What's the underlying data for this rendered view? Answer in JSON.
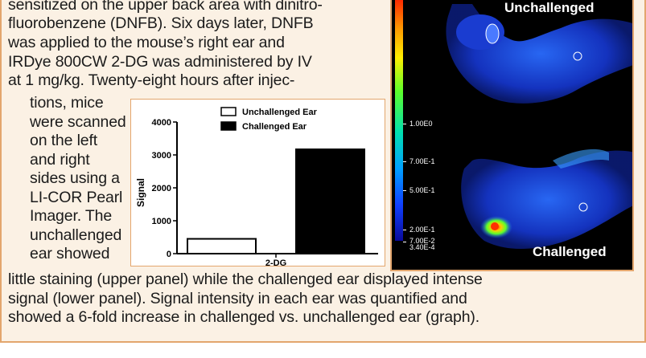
{
  "text": {
    "lines_top": [
      "sensitized on the upper back area with dinitro-",
      "fluorobenzene (DNFB). Six days later, DNFB",
      "was applied to the mouse’s right ear and",
      "IRDye 800CW 2-DG was administered by IV",
      "at 1 mg/kg. Twenty-eight hours after injec-"
    ],
    "lines_left": [
      "tions, mice",
      "were scanned",
      "on the left",
      "and right",
      "sides using a",
      "LI-COR Pearl",
      "Imager. The",
      "unchallenged",
      "ear showed"
    ],
    "lines_bottom": [
      "little staining (upper panel) while the challenged ear displayed intense",
      "signal (lower panel). Signal intensity in each ear was quantified and",
      "showed a 6-fold increase in challenged vs. unchallenged ear (graph)."
    ]
  },
  "image_panel": {
    "top_label": "Unchallenged",
    "bottom_label": "Challenged",
    "scale_labels": [
      "1.00E0",
      "7.00E-1",
      "5.00E-1",
      "2.00E-1",
      "7.00E-2",
      "3.40E-4"
    ]
  },
  "chart_data": {
    "type": "bar",
    "categories": [
      "2-DG"
    ],
    "series": [
      {
        "name": "Unchallenged Ear",
        "values": [
          450
        ],
        "fill": "#ffffff"
      },
      {
        "name": "Challenged Ear",
        "values": [
          3170
        ],
        "fill": "#000000"
      }
    ],
    "ylabel": "Signal",
    "xlabel": "",
    "ylim": [
      0,
      4000
    ],
    "yticks": [
      0,
      1000,
      2000,
      3000,
      4000
    ],
    "legend_position": "top"
  }
}
